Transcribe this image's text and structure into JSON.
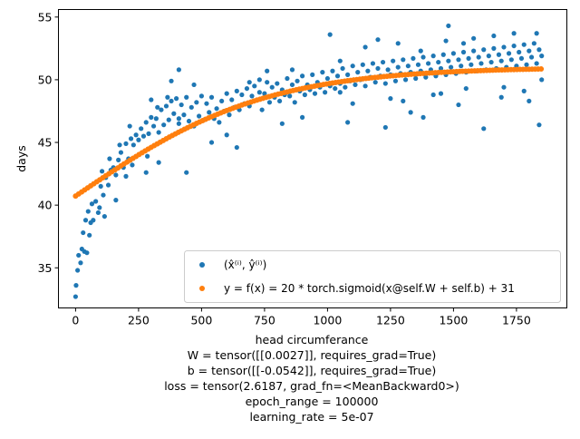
{
  "chart_data": {
    "type": "scatter",
    "xlabel": "head circumferance",
    "ylabel": "days",
    "xlim": [
      -68,
      1950
    ],
    "ylim": [
      31.8,
      55.6
    ],
    "xticks": [
      0,
      250,
      500,
      750,
      1000,
      1250,
      1500,
      1750
    ],
    "yticks": [
      35,
      40,
      45,
      50,
      55
    ],
    "grid": false,
    "legend_position": "lower right",
    "caption_lines": [
      "W = tensor([[0.0027]], requires_grad=True)",
      "b = tensor([[-0.0542]], requires_grad=True)",
      "loss = tensor(2.6187, grad_fn=<MeanBackward0>)",
      "epoch_range = 100000",
      "learning_rate = 5e-07"
    ],
    "series": [
      {
        "name": "(x̂⁽ⁱ⁾, ŷ⁽ⁱ⁾)",
        "color": "#1f77b4",
        "marker": "dot",
        "points": [
          [
            0,
            32.7
          ],
          [
            2,
            33.6
          ],
          [
            8,
            34.8
          ],
          [
            12,
            36.0
          ],
          [
            20,
            35.4
          ],
          [
            25,
            36.5
          ],
          [
            30,
            37.8
          ],
          [
            35,
            36.3
          ],
          [
            40,
            38.8
          ],
          [
            45,
            36.2
          ],
          [
            50,
            39.5
          ],
          [
            55,
            37.6
          ],
          [
            60,
            38.6
          ],
          [
            65,
            40.1
          ],
          [
            70,
            38.8
          ],
          [
            80,
            40.3
          ],
          [
            90,
            39.4
          ],
          [
            100,
            41.5
          ],
          [
            110,
            40.8
          ],
          [
            120,
            42.2
          ],
          [
            130,
            41.6
          ],
          [
            140,
            42.8
          ],
          [
            150,
            43.0
          ],
          [
            160,
            42.4
          ],
          [
            170,
            43.6
          ],
          [
            180,
            44.2
          ],
          [
            190,
            43.0
          ],
          [
            200,
            44.9
          ],
          [
            210,
            43.7
          ],
          [
            220,
            45.3
          ],
          [
            230,
            44.8
          ],
          [
            240,
            45.6
          ],
          [
            250,
            45.2
          ],
          [
            260,
            46.1
          ],
          [
            270,
            45.5
          ],
          [
            280,
            46.6
          ],
          [
            290,
            45.7
          ],
          [
            300,
            47.0
          ],
          [
            310,
            46.3
          ],
          [
            320,
            46.9
          ],
          [
            330,
            45.8
          ],
          [
            340,
            47.6
          ],
          [
            350,
            46.4
          ],
          [
            360,
            47.9
          ],
          [
            370,
            46.8
          ],
          [
            380,
            48.3
          ],
          [
            390,
            47.3
          ],
          [
            400,
            48.5
          ],
          [
            410,
            46.9
          ],
          [
            420,
            48.0
          ],
          [
            430,
            47.2
          ],
          [
            440,
            48.6
          ],
          [
            450,
            46.7
          ],
          [
            460,
            47.8
          ],
          [
            470,
            46.3
          ],
          [
            480,
            48.2
          ],
          [
            490,
            47.1
          ],
          [
            500,
            48.7
          ],
          [
            510,
            46.8
          ],
          [
            520,
            48.1
          ],
          [
            530,
            47.4
          ],
          [
            540,
            48.6
          ],
          [
            550,
            46.9
          ],
          [
            560,
            47.7
          ],
          [
            570,
            46.6
          ],
          [
            580,
            48.3
          ],
          [
            590,
            47.5
          ],
          [
            600,
            48.9
          ],
          [
            610,
            47.2
          ],
          [
            620,
            48.4
          ],
          [
            630,
            47.8
          ],
          [
            640,
            49.1
          ],
          [
            650,
            47.6
          ],
          [
            660,
            48.8
          ],
          [
            670,
            48.1
          ],
          [
            680,
            49.3
          ],
          [
            690,
            47.9
          ],
          [
            700,
            48.7
          ],
          [
            710,
            49.5
          ],
          [
            720,
            48.4
          ],
          [
            730,
            49.0
          ],
          [
            740,
            47.6
          ],
          [
            750,
            48.9
          ],
          [
            760,
            49.8
          ],
          [
            770,
            48.2
          ],
          [
            780,
            49.4
          ],
          [
            790,
            48.6
          ],
          [
            800,
            49.7
          ],
          [
            810,
            48.3
          ],
          [
            820,
            49.2
          ],
          [
            830,
            48.8
          ],
          [
            840,
            50.1
          ],
          [
            850,
            48.7
          ],
          [
            860,
            49.6
          ],
          [
            870,
            48.2
          ],
          [
            880,
            49.9
          ],
          [
            890,
            49.1
          ],
          [
            900,
            50.3
          ],
          [
            910,
            48.8
          ],
          [
            920,
            49.6
          ],
          [
            930,
            49.2
          ],
          [
            940,
            50.4
          ],
          [
            950,
            48.9
          ],
          [
            960,
            49.8
          ],
          [
            970,
            49.4
          ],
          [
            980,
            50.6
          ],
          [
            990,
            49.0
          ],
          [
            1000,
            50.1
          ],
          [
            1010,
            49.5
          ],
          [
            1020,
            50.7
          ],
          [
            1030,
            49.3
          ],
          [
            1040,
            50.3
          ],
          [
            1050,
            49.7
          ],
          [
            1060,
            50.9
          ],
          [
            1070,
            49.4
          ],
          [
            1080,
            50.4
          ],
          [
            1090,
            49.9
          ],
          [
            1100,
            51.1
          ],
          [
            1110,
            49.6
          ],
          [
            1120,
            50.6
          ],
          [
            1130,
            50.0
          ],
          [
            1140,
            51.2
          ],
          [
            1150,
            49.5
          ],
          [
            1160,
            50.7
          ],
          [
            1170,
            50.2
          ],
          [
            1180,
            51.3
          ],
          [
            1190,
            49.8
          ],
          [
            1200,
            50.9
          ],
          [
            1210,
            50.3
          ],
          [
            1220,
            51.4
          ],
          [
            1230,
            49.7
          ],
          [
            1240,
            50.8
          ],
          [
            1250,
            50.4
          ],
          [
            1260,
            51.5
          ],
          [
            1270,
            49.9
          ],
          [
            1280,
            51.0
          ],
          [
            1290,
            50.5
          ],
          [
            1300,
            51.6
          ],
          [
            1310,
            50.0
          ],
          [
            1320,
            51.1
          ],
          [
            1330,
            50.6
          ],
          [
            1340,
            51.7
          ],
          [
            1350,
            50.1
          ],
          [
            1360,
            51.2
          ],
          [
            1370,
            50.7
          ],
          [
            1380,
            51.8
          ],
          [
            1390,
            50.2
          ],
          [
            1400,
            51.3
          ],
          [
            1410,
            50.8
          ],
          [
            1420,
            51.9
          ],
          [
            1430,
            50.3
          ],
          [
            1440,
            51.4
          ],
          [
            1450,
            50.9
          ],
          [
            1460,
            52.0
          ],
          [
            1470,
            50.4
          ],
          [
            1480,
            51.5
          ],
          [
            1490,
            51.0
          ],
          [
            1500,
            52.1
          ],
          [
            1510,
            50.5
          ],
          [
            1520,
            51.6
          ],
          [
            1530,
            51.1
          ],
          [
            1540,
            52.2
          ],
          [
            1550,
            50.6
          ],
          [
            1560,
            51.7
          ],
          [
            1570,
            51.2
          ],
          [
            1580,
            52.3
          ],
          [
            1590,
            50.7
          ],
          [
            1600,
            51.8
          ],
          [
            1610,
            51.3
          ],
          [
            1620,
            52.4
          ],
          [
            1630,
            50.8
          ],
          [
            1640,
            51.9
          ],
          [
            1650,
            51.4
          ],
          [
            1660,
            52.5
          ],
          [
            1670,
            50.9
          ],
          [
            1680,
            52.0
          ],
          [
            1690,
            51.5
          ],
          [
            1700,
            52.6
          ],
          [
            1710,
            51.0
          ],
          [
            1720,
            52.1
          ],
          [
            1730,
            51.6
          ],
          [
            1740,
            52.7
          ],
          [
            1750,
            51.1
          ],
          [
            1760,
            52.2
          ],
          [
            1770,
            51.7
          ],
          [
            1780,
            52.8
          ],
          [
            1790,
            51.2
          ],
          [
            1800,
            52.3
          ],
          [
            1810,
            51.8
          ],
          [
            1820,
            52.9
          ],
          [
            1830,
            51.3
          ],
          [
            1840,
            52.4
          ],
          [
            1850,
            51.9
          ],
          [
            95,
            39.8
          ],
          [
            105,
            42.7
          ],
          [
            135,
            43.7
          ],
          [
            175,
            44.8
          ],
          [
            225,
            43.2
          ],
          [
            285,
            43.9
          ],
          [
            325,
            47.8
          ],
          [
            365,
            48.6
          ],
          [
            410,
            50.8
          ],
          [
            470,
            49.6
          ],
          [
            540,
            45.0
          ],
          [
            600,
            45.6
          ],
          [
            640,
            44.6
          ],
          [
            690,
            49.8
          ],
          [
            760,
            50.7
          ],
          [
            820,
            46.5
          ],
          [
            860,
            50.8
          ],
          [
            900,
            47.0
          ],
          [
            1010,
            53.6
          ],
          [
            1050,
            51.5
          ],
          [
            1080,
            46.6
          ],
          [
            1150,
            52.6
          ],
          [
            1200,
            53.2
          ],
          [
            1230,
            46.2
          ],
          [
            1280,
            52.9
          ],
          [
            1330,
            47.4
          ],
          [
            1370,
            52.3
          ],
          [
            1420,
            48.8
          ],
          [
            1470,
            53.1
          ],
          [
            1480,
            54.3
          ],
          [
            1520,
            48.0
          ],
          [
            1540,
            52.9
          ],
          [
            1580,
            53.3
          ],
          [
            1620,
            46.1
          ],
          [
            1660,
            53.5
          ],
          [
            1690,
            48.6
          ],
          [
            1740,
            53.7
          ],
          [
            1800,
            48.3
          ],
          [
            1830,
            53.7
          ],
          [
            1840,
            46.4
          ],
          [
            1850,
            50.0
          ],
          [
            410,
            46.5
          ],
          [
            300,
            48.4
          ],
          [
            440,
            42.6
          ],
          [
            330,
            43.4
          ],
          [
            280,
            42.6
          ],
          [
            160,
            40.4
          ],
          [
            115,
            39.1
          ],
          [
            200,
            42.3
          ],
          [
            215,
            46.3
          ],
          [
            380,
            49.9
          ],
          [
            730,
            50.0
          ],
          [
            1050,
            49.0
          ],
          [
            1250,
            48.5
          ],
          [
            1300,
            48.3
          ],
          [
            1100,
            48.1
          ],
          [
            1380,
            47.0
          ],
          [
            1450,
            48.9
          ],
          [
            1550,
            49.3
          ],
          [
            1700,
            49.4
          ],
          [
            1780,
            49.1
          ]
        ]
      },
      {
        "name": "y = f(x) = 20 * torch.sigmoid(x@self.W + self.b) + 31",
        "color": "#ff7f0e",
        "marker": "dot",
        "function": {
          "W": 0.0027,
          "b": -0.0542,
          "scale": 20,
          "offset": 31,
          "x_range": [
            0,
            1850
          ],
          "step": 12
        }
      }
    ]
  }
}
